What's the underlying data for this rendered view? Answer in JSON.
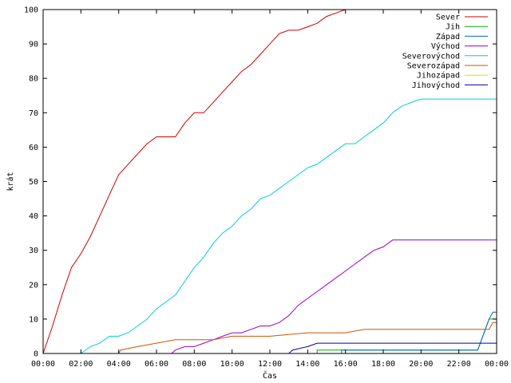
{
  "chart_data": {
    "type": "line",
    "title": "",
    "xlabel": "Čas",
    "ylabel": "krát",
    "xlim_hours": [
      0,
      24
    ],
    "ylim": [
      0,
      100
    ],
    "x_ticks": [
      "00:00",
      "02:00",
      "04:00",
      "06:00",
      "08:00",
      "10:00",
      "12:00",
      "14:00",
      "16:00",
      "18:00",
      "20:00",
      "22:00",
      "00:00"
    ],
    "y_ticks": [
      0,
      10,
      20,
      30,
      40,
      50,
      60,
      70,
      80,
      90,
      100
    ],
    "grid": false,
    "legend_position": "top-right",
    "series": [
      {
        "name": "Sever",
        "color": "#cc0000",
        "points": [
          [
            0,
            0
          ],
          [
            0.5,
            8
          ],
          [
            1,
            17
          ],
          [
            1.5,
            25
          ],
          [
            2,
            29
          ],
          [
            2.5,
            34
          ],
          [
            3,
            40
          ],
          [
            3.5,
            46
          ],
          [
            4,
            52
          ],
          [
            4.5,
            55
          ],
          [
            5,
            58
          ],
          [
            5.5,
            61
          ],
          [
            6,
            63
          ],
          [
            6.5,
            63
          ],
          [
            7,
            63
          ],
          [
            7.5,
            67
          ],
          [
            8,
            70
          ],
          [
            8.5,
            70
          ],
          [
            9,
            73
          ],
          [
            9.5,
            76
          ],
          [
            10,
            79
          ],
          [
            10.5,
            82
          ],
          [
            11,
            84
          ],
          [
            11.5,
            87
          ],
          [
            12,
            90
          ],
          [
            12.5,
            93
          ],
          [
            13,
            94
          ],
          [
            13.5,
            94
          ],
          [
            14,
            95
          ],
          [
            14.5,
            96
          ],
          [
            15,
            98
          ],
          [
            15.5,
            99
          ],
          [
            16,
            100
          ],
          [
            16.9,
            100
          ]
        ]
      },
      {
        "name": "Jih",
        "color": "#00aa00",
        "points": [
          [
            0,
            0
          ],
          [
            14.5,
            0
          ],
          [
            14.5,
            1
          ],
          [
            23.0,
            1
          ],
          [
            23.2,
            4
          ],
          [
            23.4,
            7
          ],
          [
            23.6,
            10
          ],
          [
            24,
            10
          ]
        ]
      },
      {
        "name": "Západ",
        "color": "#0066cc",
        "points": [
          [
            0,
            0
          ],
          [
            15.8,
            0
          ],
          [
            15.8,
            1
          ],
          [
            22.0,
            1
          ],
          [
            23.0,
            1
          ],
          [
            23.2,
            4
          ],
          [
            23.4,
            7
          ],
          [
            23.6,
            10
          ],
          [
            23.8,
            12
          ],
          [
            24,
            12
          ]
        ]
      },
      {
        "name": "Východ",
        "color": "#9900cc",
        "points": [
          [
            0,
            0
          ],
          [
            6.8,
            0
          ],
          [
            7,
            1
          ],
          [
            7.5,
            2
          ],
          [
            8,
            2
          ],
          [
            8.5,
            3
          ],
          [
            9,
            4
          ],
          [
            9.5,
            5
          ],
          [
            10,
            6
          ],
          [
            10.5,
            6
          ],
          [
            11,
            7
          ],
          [
            11.5,
            8
          ],
          [
            12,
            8
          ],
          [
            12.5,
            9
          ],
          [
            13,
            11
          ],
          [
            13.5,
            14
          ],
          [
            14,
            16
          ],
          [
            14.5,
            18
          ],
          [
            15,
            20
          ],
          [
            15.5,
            22
          ],
          [
            16,
            24
          ],
          [
            16.5,
            26
          ],
          [
            17,
            28
          ],
          [
            17.5,
            30
          ],
          [
            18,
            31
          ],
          [
            18.5,
            33
          ],
          [
            24,
            33
          ]
        ]
      },
      {
        "name": "Severovýchod",
        "color": "#00ccdd",
        "points": [
          [
            0,
            0
          ],
          [
            2,
            0
          ],
          [
            2.5,
            2
          ],
          [
            3,
            3
          ],
          [
            3.5,
            5
          ],
          [
            4,
            5
          ],
          [
            4.5,
            6
          ],
          [
            5,
            8
          ],
          [
            5.5,
            10
          ],
          [
            6,
            13
          ],
          [
            6.5,
            15
          ],
          [
            7,
            17
          ],
          [
            7.5,
            21
          ],
          [
            8,
            25
          ],
          [
            8.5,
            28
          ],
          [
            9,
            32
          ],
          [
            9.5,
            35
          ],
          [
            10,
            37
          ],
          [
            10.5,
            40
          ],
          [
            11,
            42
          ],
          [
            11.5,
            45
          ],
          [
            12,
            46
          ],
          [
            12.5,
            48
          ],
          [
            13,
            50
          ],
          [
            13.5,
            52
          ],
          [
            14,
            54
          ],
          [
            14.5,
            55
          ],
          [
            15,
            57
          ],
          [
            15.5,
            59
          ],
          [
            16,
            61
          ],
          [
            16.5,
            61
          ],
          [
            17,
            63
          ],
          [
            17.5,
            65
          ],
          [
            18,
            67
          ],
          [
            18.5,
            70
          ],
          [
            19,
            72
          ],
          [
            19.5,
            73
          ],
          [
            20,
            74
          ],
          [
            24,
            74
          ]
        ]
      },
      {
        "name": "Severozápad",
        "color": "#cc5500",
        "points": [
          [
            0,
            0
          ],
          [
            4,
            0
          ],
          [
            4.1,
            1
          ],
          [
            5,
            2
          ],
          [
            6,
            3
          ],
          [
            7,
            4
          ],
          [
            9,
            4
          ],
          [
            10,
            5
          ],
          [
            12,
            5
          ],
          [
            14,
            6
          ],
          [
            16,
            6
          ],
          [
            17,
            7
          ],
          [
            20,
            7
          ],
          [
            22,
            7
          ],
          [
            23.6,
            7
          ],
          [
            23.8,
            9
          ],
          [
            24,
            9
          ]
        ]
      },
      {
        "name": "Jihozápad",
        "color": "#dddd00",
        "points": [
          [
            0,
            0
          ],
          [
            24,
            0
          ]
        ]
      },
      {
        "name": "Jihovýchod",
        "color": "#000099",
        "points": [
          [
            0,
            0
          ],
          [
            13,
            0
          ],
          [
            13.2,
            1
          ],
          [
            14,
            2
          ],
          [
            14.5,
            3
          ],
          [
            16,
            3
          ],
          [
            24,
            3
          ]
        ]
      }
    ]
  }
}
